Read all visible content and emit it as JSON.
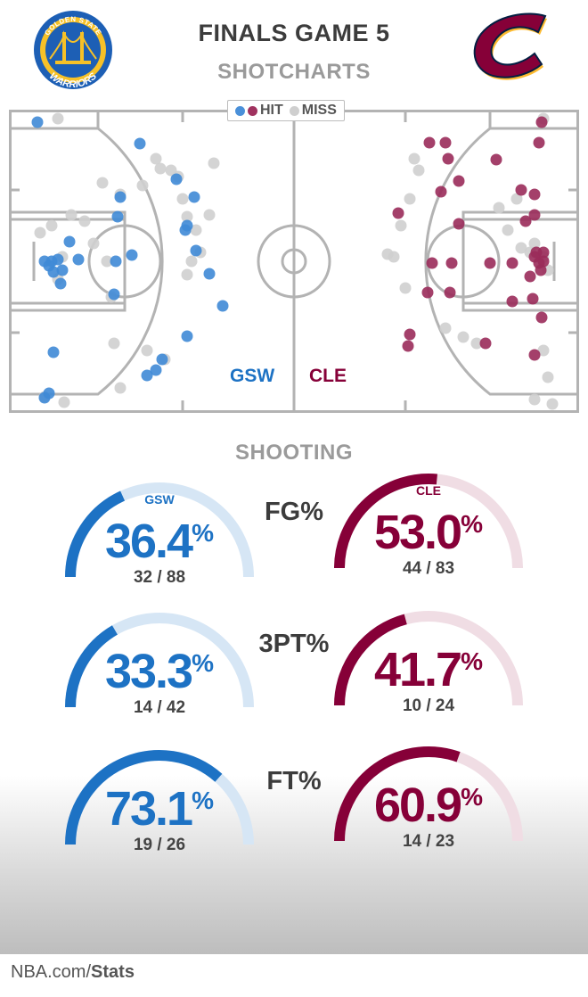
{
  "header": {
    "title": "FINALS GAME 5",
    "subtitle": "SHOTCHARTS"
  },
  "legend": {
    "hit": "HIT",
    "miss": "MISS"
  },
  "colors": {
    "gsw": "#1d72c4",
    "cle": "#860038",
    "miss": "#cfcfcf",
    "gsw_light": "#d6e6f5",
    "cle_light": "#f0dde4"
  },
  "teams": {
    "gsw": "GSW",
    "cle": "CLE"
  },
  "logos": {
    "gsw_text_top": "GOLDEN STATE",
    "gsw_text_bottom": "WARRIORS",
    "gsw_icon": "golden-state-warriors-logo",
    "cle_icon": "cleveland-cavaliers-logo"
  },
  "section_title": "SHOOTING",
  "chart_data": [
    {
      "type": "gauge",
      "stat": "FG%",
      "team": "GSW",
      "percent": 36.4,
      "made": 32,
      "attempts": 88,
      "ratio": "32/88"
    },
    {
      "type": "gauge",
      "stat": "FG%",
      "team": "CLE",
      "percent": 53.0,
      "made": 44,
      "attempts": 83,
      "ratio": "44/83"
    },
    {
      "type": "gauge",
      "stat": "3PT%",
      "team": "GSW",
      "percent": 33.3,
      "made": 14,
      "attempts": 42,
      "ratio": "14/42"
    },
    {
      "type": "gauge",
      "stat": "3PT%",
      "team": "CLE",
      "percent": 41.7,
      "made": 10,
      "attempts": 24,
      "ratio": "10/24"
    },
    {
      "type": "gauge",
      "stat": "FT%",
      "team": "GSW",
      "percent": 73.1,
      "made": 19,
      "attempts": 26,
      "ratio": "19/26"
    },
    {
      "type": "gauge",
      "stat": "FT%",
      "team": "CLE",
      "percent": 60.9,
      "made": 14,
      "attempts": 23,
      "ratio": "14/23"
    }
  ],
  "stat_labels": [
    "FG%",
    "3PT%",
    "FT%"
  ],
  "footer": {
    "site": "NBA.com/",
    "section": "Stats"
  }
}
